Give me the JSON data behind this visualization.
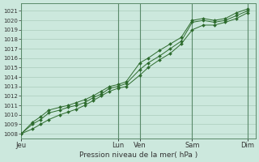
{
  "xlabel": "Pression niveau de la mer( hPa )",
  "ylim": [
    1007.5,
    1021.8
  ],
  "yticks": [
    1008,
    1009,
    1010,
    1011,
    1012,
    1013,
    1014,
    1015,
    1016,
    1017,
    1018,
    1019,
    1020,
    1021
  ],
  "bg_color": "#cce8dd",
  "grid_color_h": "#aaccbb",
  "grid_color_v": "#5a8a6a",
  "line_color": "#2d6b2d",
  "x_tick_labels": [
    "Jeu",
    "Lun",
    "Ven",
    "Sam",
    "Dim"
  ],
  "x_ticks_pos": [
    0,
    35,
    43,
    62,
    82
  ],
  "xlim": [
    0,
    85
  ],
  "vlines": [
    0,
    35,
    43,
    62,
    82
  ],
  "series": [
    {
      "x": [
        0,
        4,
        7,
        10,
        14,
        17,
        20,
        23,
        26,
        29,
        32,
        35,
        38,
        43,
        46,
        50,
        54,
        58,
        62,
        66,
        70,
        74,
        78,
        82
      ],
      "y": [
        1008.0,
        1009.2,
        1009.8,
        1010.5,
        1010.8,
        1011.0,
        1011.3,
        1011.6,
        1012.0,
        1012.5,
        1013.0,
        1013.2,
        1013.5,
        1015.5,
        1016.0,
        1016.8,
        1017.5,
        1018.2,
        1020.0,
        1020.2,
        1020.0,
        1020.2,
        1020.8,
        1021.2
      ]
    },
    {
      "x": [
        0,
        4,
        7,
        10,
        14,
        17,
        20,
        23,
        26,
        29,
        32,
        35,
        38,
        43,
        46,
        50,
        54,
        58,
        62,
        66,
        70,
        74,
        78,
        82
      ],
      "y": [
        1008.0,
        1009.0,
        1009.5,
        1010.2,
        1010.5,
        1010.8,
        1011.0,
        1011.3,
        1011.8,
        1012.2,
        1012.8,
        1013.0,
        1013.3,
        1014.8,
        1015.5,
        1016.2,
        1017.0,
        1017.8,
        1019.8,
        1020.0,
        1019.8,
        1020.0,
        1020.5,
        1021.0
      ]
    },
    {
      "x": [
        0,
        4,
        7,
        10,
        14,
        17,
        20,
        23,
        26,
        29,
        32,
        35,
        38,
        43,
        46,
        50,
        54,
        58,
        62,
        66,
        70,
        74,
        78,
        82
      ],
      "y": [
        1008.0,
        1008.5,
        1009.0,
        1009.5,
        1010.0,
        1010.3,
        1010.6,
        1011.0,
        1011.5,
        1012.0,
        1012.5,
        1012.8,
        1013.0,
        1014.2,
        1015.0,
        1015.8,
        1016.5,
        1017.5,
        1019.0,
        1019.5,
        1019.5,
        1019.8,
        1020.2,
        1020.8
      ]
    }
  ],
  "figsize": [
    3.2,
    2.0
  ],
  "dpi": 100
}
